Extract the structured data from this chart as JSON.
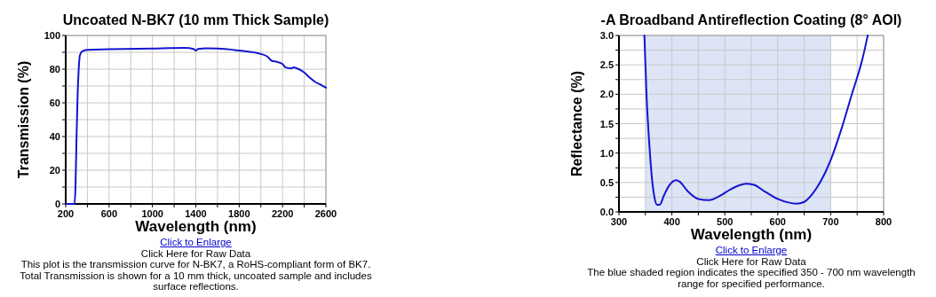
{
  "chart_data": [
    {
      "type": "line",
      "title": "Uncoated N-BK7 (10 mm Thick Sample)",
      "xlabel": "Wavelength (nm)",
      "ylabel": "Transmission (%)",
      "xlim": [
        200,
        2600
      ],
      "xticks": [
        200,
        {
          "value": 400,
          "label": null
        },
        600,
        {
          "value": 800,
          "label": null
        },
        1000,
        {
          "value": 1200,
          "label": null
        },
        1400,
        {
          "value": 1600,
          "label": null
        },
        1800,
        {
          "value": 2000,
          "label": null
        },
        2200,
        {
          "value": 2400,
          "label": null
        },
        2600
      ],
      "ylim": [
        0,
        100
      ],
      "yticks": [
        0,
        {
          "value": 10,
          "label": null
        },
        20,
        {
          "value": 30,
          "label": null
        },
        40,
        {
          "value": 50,
          "label": null
        },
        60,
        {
          "value": 70,
          "label": null
        },
        80,
        {
          "value": 90,
          "label": null
        },
        100
      ],
      "grid": true,
      "series": [
        {
          "color": "#1414d2",
          "x": [
            200,
            280,
            290,
            300,
            310,
            320,
            330,
            350,
            400,
            600,
            1000,
            1300,
            1380,
            1400,
            1420,
            1500,
            1600,
            1800,
            2000,
            2060,
            2100,
            2150,
            2200,
            2230,
            2280,
            2300,
            2350,
            2400,
            2450,
            2500,
            2560,
            2600
          ],
          "values": [
            0,
            0,
            10,
            40,
            65,
            80,
            88,
            90.5,
            91.5,
            91.8,
            92.3,
            92.6,
            92,
            91,
            92,
            92.4,
            92.3,
            91,
            89,
            87.5,
            85,
            84.3,
            83,
            81,
            80.5,
            81,
            80,
            78,
            75,
            72.5,
            70.5,
            69
          ]
        }
      ],
      "annotations": [
        "Click to Enlarge",
        "Click Here for Raw Data",
        "This plot is the transmission curve for N-BK7, a RoHS-compliant form of BK7. Total Transmission is shown for a 10 mm thick, uncoated sample and includes surface reflections."
      ]
    },
    {
      "type": "line",
      "title": "-A Broadband Antireflection Coating (8° AOI)",
      "xlabel": "Wavelength (nm)",
      "ylabel": "Reflectance (%)",
      "xlim": [
        300,
        800
      ],
      "xticks": [
        300,
        {
          "value": 350,
          "label": null
        },
        400,
        {
          "value": 450,
          "label": null
        },
        500,
        {
          "value": 550,
          "label": null
        },
        600,
        {
          "value": 650,
          "label": null
        },
        700,
        {
          "value": 750,
          "label": null
        },
        800
      ],
      "ylim": [
        0,
        3
      ],
      "yticks": [
        {
          "value": 0,
          "label": "0.0"
        },
        {
          "value": 0.25,
          "label": null
        },
        {
          "value": 0.5,
          "label": "0.5"
        },
        {
          "value": 0.75,
          "label": null
        },
        {
          "value": 1,
          "label": "1.0"
        },
        {
          "value": 1.25,
          "label": null
        },
        {
          "value": 1.5,
          "label": "1.5"
        },
        {
          "value": 1.75,
          "label": null
        },
        {
          "value": 2,
          "label": "2.0"
        },
        {
          "value": 2.25,
          "label": null
        },
        {
          "value": 2.5,
          "label": "2.5"
        },
        {
          "value": 2.75,
          "label": null
        },
        {
          "value": 3,
          "label": "3.0"
        }
      ],
      "grid": true,
      "bands": [
        {
          "axis": "x",
          "from": 350,
          "to": 700,
          "color": "#dce4f5"
        }
      ],
      "series": [
        {
          "color": "#1414d2",
          "x": [
            348,
            352,
            357,
            362,
            367,
            372,
            377,
            385,
            395,
            408,
            415,
            430,
            450,
            470,
            490,
            510,
            530,
            540,
            555,
            575,
            600,
            620,
            635,
            650,
            665,
            680,
            700,
            720,
            740,
            760,
            770
          ],
          "values": [
            3.0,
            2.0,
            1.2,
            0.6,
            0.25,
            0.12,
            0.12,
            0.28,
            0.45,
            0.54,
            0.51,
            0.35,
            0.22,
            0.2,
            0.27,
            0.38,
            0.46,
            0.48,
            0.46,
            0.35,
            0.22,
            0.16,
            0.14,
            0.17,
            0.3,
            0.5,
            0.88,
            1.4,
            2.0,
            2.6,
            3.0
          ]
        }
      ],
      "annotations": [
        "Click to Enlarge",
        "Click Here for Raw Data",
        "The blue shaded region indicates the specified 350 - 700 nm wavelength range for specified performance."
      ]
    }
  ]
}
